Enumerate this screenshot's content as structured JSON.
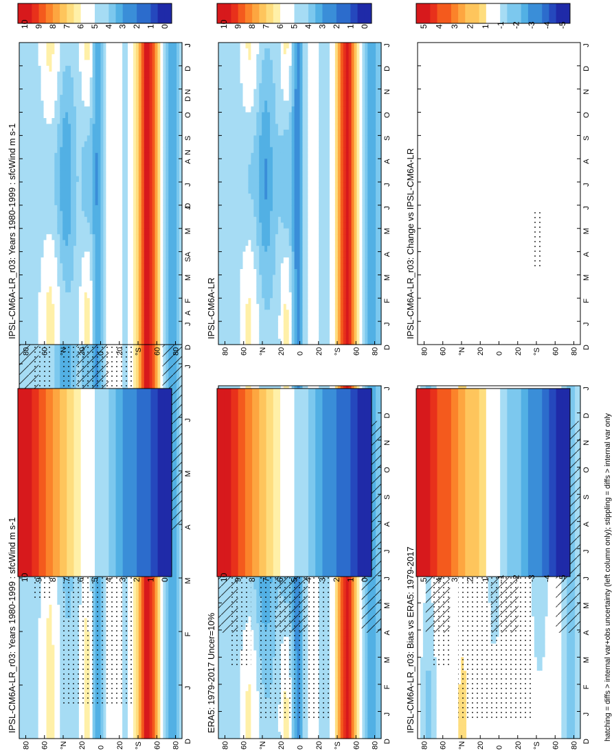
{
  "figure": {
    "footnote": "hatching = diffs > internal var+obs uncertainty (left column only); stippling = diffs > internal var only"
  },
  "colors": {
    "warm": [
      "#d7191c",
      "#e8311b",
      "#f45a1d",
      "#fb832a",
      "#fda640",
      "#fec55c",
      "#fedd7e",
      "#fff0a8"
    ],
    "neutral": "#ffffff",
    "cool": [
      "#a6dcf4",
      "#7cc8ee",
      "#52b0e4",
      "#3a8ed8",
      "#2c6ccc",
      "#2548bd",
      "#1f2aa8"
    ]
  },
  "chart_data": [
    {
      "type": "heatmap",
      "panel": "model-absolute-left",
      "title": "IPSL-CM6A-LR_r03: Years 1980-1999 : sfcWind m s-1",
      "x_ticks": [
        "D",
        "J",
        "F",
        "M",
        "A",
        "M",
        "J",
        "J",
        "A",
        "S",
        "O",
        "N",
        "D",
        "J"
      ],
      "y_ticks": [
        "80",
        "60",
        "°N",
        "20",
        "0",
        "20",
        "°S",
        "60",
        "80"
      ],
      "ylim": [
        -90,
        90
      ],
      "colorbar": {
        "ticks": [
          "10",
          "9",
          "8",
          "7",
          "6",
          "5",
          "4",
          "3",
          "2",
          "1",
          "0"
        ],
        "vmin": 0,
        "vmax": 10
      },
      "hatching": true,
      "stippling": true
    },
    {
      "type": "heatmap",
      "panel": "model-absolute-right",
      "title": "IPSL-CM6A-LR_r03: Years 1980-1999 : sfcWind m s-1",
      "x_ticks": [
        "D",
        "J",
        "F",
        "M",
        "A",
        "M",
        "J",
        "J",
        "A",
        "S",
        "O",
        "N",
        "D",
        "J"
      ],
      "y_ticks": [
        "80",
        "60",
        "°N",
        "20",
        "0",
        "20",
        "°S",
        "60",
        "80"
      ],
      "ylim": [
        -90,
        90
      ],
      "colorbar": {
        "ticks": [
          "10",
          "9",
          "8",
          "7",
          "6",
          "5",
          "4",
          "3",
          "2",
          "1",
          "0"
        ],
        "vmin": 0,
        "vmax": 10
      },
      "hatching": false,
      "stippling": false
    },
    {
      "type": "heatmap",
      "panel": "reference-left",
      "title": "ERA5: 1979-2017 Uncer=10%",
      "x_ticks": [
        "D",
        "J",
        "F",
        "M",
        "A",
        "M",
        "J",
        "J",
        "A",
        "S",
        "O",
        "N",
        "D",
        "J"
      ],
      "y_ticks": [
        "80",
        "60",
        "°N",
        "20",
        "0",
        "20",
        "°S",
        "60",
        "80"
      ],
      "ylim": [
        -90,
        90
      ],
      "colorbar": {
        "ticks": [
          "10",
          "9",
          "8",
          "7",
          "6",
          "5",
          "4",
          "3",
          "2",
          "1",
          "0"
        ],
        "vmin": 0,
        "vmax": 10
      },
      "hatching": true,
      "stippling": true
    },
    {
      "type": "heatmap",
      "panel": "reference-right",
      "title": "IPSL-CM6A-LR",
      "x_ticks": [
        "D",
        "J",
        "F",
        "M",
        "A",
        "M",
        "J",
        "J",
        "A",
        "S",
        "O",
        "N",
        "D",
        "J"
      ],
      "y_ticks": [
        "80",
        "60",
        "°N",
        "20",
        "0",
        "20",
        "°S",
        "60",
        "80"
      ],
      "ylim": [
        -90,
        90
      ],
      "colorbar": {
        "ticks": [
          "10",
          "9",
          "8",
          "7",
          "6",
          "5",
          "4",
          "3",
          "2",
          "1",
          "0"
        ],
        "vmin": 0,
        "vmax": 10
      },
      "hatching": false,
      "stippling": false
    },
    {
      "type": "heatmap",
      "panel": "bias-left",
      "title": "IPSL-CM6A-LR_r03: Bias vs ERA5: 1979-2017",
      "x_ticks": [
        "D",
        "J",
        "F",
        "M",
        "A",
        "M",
        "J",
        "J",
        "A",
        "S",
        "O",
        "N",
        "D",
        "J"
      ],
      "y_ticks": [
        "80",
        "60",
        "°N",
        "20",
        "0",
        "20",
        "°S",
        "60",
        "80"
      ],
      "ylim": [
        -90,
        90
      ],
      "colorbar": {
        "ticks": [
          "5",
          "4",
          "3",
          "2",
          "1",
          "-1",
          "-2",
          "-3",
          "-4",
          "-5"
        ],
        "vmin": -5,
        "vmax": 5
      },
      "hatching": true,
      "stippling": true
    },
    {
      "type": "heatmap",
      "panel": "change-right",
      "title": "IPSL-CM6A-LR_r03: Change vs IPSL-CM6A-LR",
      "x_ticks": [
        "D",
        "J",
        "F",
        "M",
        "A",
        "M",
        "J",
        "J",
        "A",
        "S",
        "O",
        "N",
        "D",
        "J"
      ],
      "y_ticks": [
        "80",
        "60",
        "°N",
        "20",
        "0",
        "20",
        "°S",
        "60",
        "80"
      ],
      "ylim": [
        -90,
        90
      ],
      "colorbar": {
        "ticks": [
          "5",
          "4",
          "3",
          "2",
          "1",
          "-1",
          "-2",
          "-3",
          "-4",
          "-5"
        ],
        "vmin": -5,
        "vmax": 5
      },
      "hatching": false,
      "stippling": true
    }
  ]
}
